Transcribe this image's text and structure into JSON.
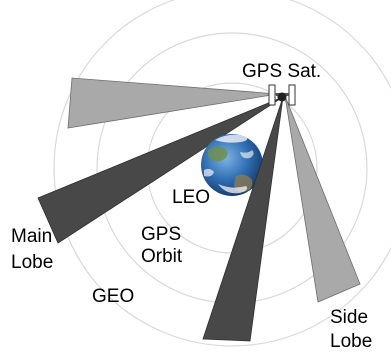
{
  "labels": {
    "gps_sat": "GPS Sat.",
    "leo": "LEO",
    "gps_orbit_line1": "GPS",
    "gps_orbit_line2": "Orbit",
    "geo": "GEO",
    "main_lobe_line1": "Main",
    "main_lobe_line2": "Lobe",
    "side_lobe_line1": "Side",
    "side_lobe_line2": "Lobe"
  },
  "colors": {
    "main_lobe": "#484848",
    "side_lobe": "#a9a9a9",
    "orbit": "#d9d9d9",
    "earth_ocean": "#2f6fb3"
  }
}
